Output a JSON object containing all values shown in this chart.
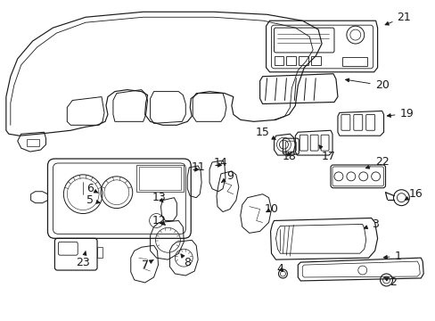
{
  "bg_color": "#ffffff",
  "line_color": "#1a1a1a",
  "lw": 0.8,
  "fs": 9.0,
  "labels_arrows": [
    [
      21,
      455,
      18,
      430,
      28
    ],
    [
      20,
      430,
      95,
      385,
      88
    ],
    [
      19,
      458,
      127,
      432,
      130
    ],
    [
      15,
      295,
      148,
      313,
      158
    ],
    [
      18,
      325,
      175,
      323,
      167
    ],
    [
      17,
      370,
      175,
      358,
      162
    ],
    [
      22,
      430,
      182,
      408,
      190
    ],
    [
      16,
      468,
      218,
      455,
      225
    ],
    [
      11,
      222,
      188,
      216,
      195
    ],
    [
      14,
      248,
      183,
      242,
      190
    ],
    [
      9,
      258,
      198,
      248,
      205
    ],
    [
      10,
      305,
      235,
      296,
      240
    ],
    [
      13,
      178,
      222,
      185,
      230
    ],
    [
      12,
      178,
      248,
      188,
      255
    ],
    [
      7,
      162,
      298,
      172,
      292
    ],
    [
      8,
      210,
      295,
      202,
      285
    ],
    [
      6,
      100,
      212,
      112,
      218
    ],
    [
      5,
      100,
      225,
      112,
      228
    ],
    [
      3,
      422,
      252,
      406,
      258
    ],
    [
      1,
      448,
      288,
      428,
      290
    ],
    [
      2,
      443,
      318,
      432,
      312
    ],
    [
      4,
      315,
      302,
      321,
      308
    ],
    [
      23,
      92,
      295,
      95,
      282
    ]
  ]
}
